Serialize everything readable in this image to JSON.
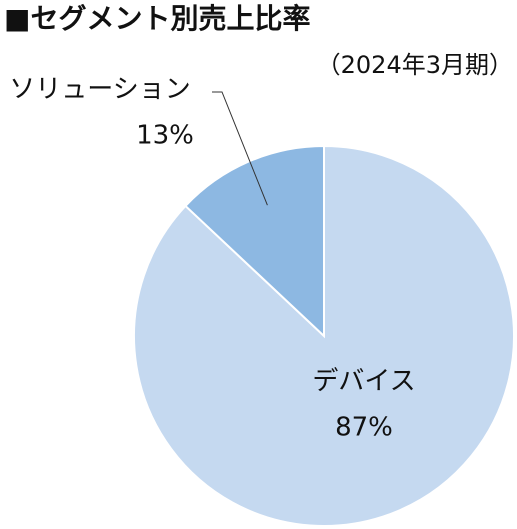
{
  "chart_data": {
    "type": "pie",
    "title": "■セグメント別売上比率",
    "subtitle": "（2024年3月期）",
    "categories": [
      "デバイス",
      "ソリューション"
    ],
    "values": [
      87,
      13
    ],
    "value_labels": [
      "87%",
      "13%"
    ],
    "colors": [
      "#c5d9f0",
      "#8db8e2"
    ]
  }
}
